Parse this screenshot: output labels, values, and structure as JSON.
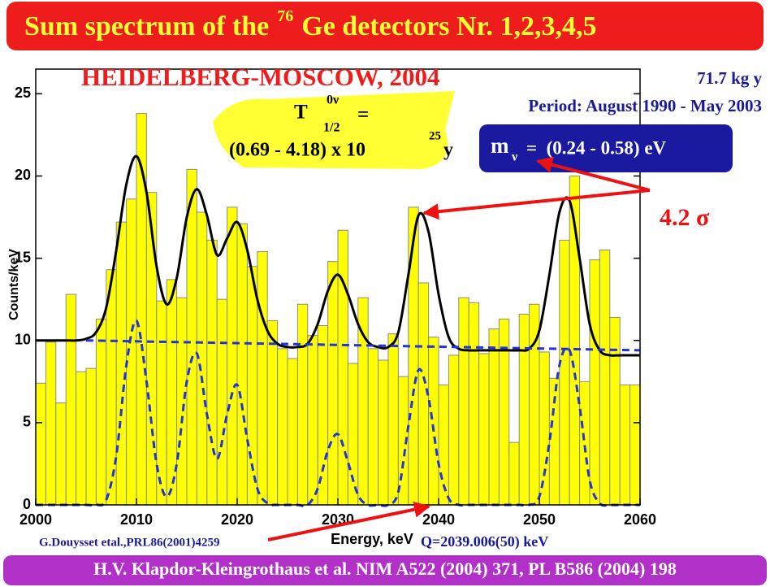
{
  "chart_data": {
    "type": "histogram",
    "title": {
      "main": "Sum spectrum of the",
      "superscript": "76",
      "rest": "Ge detectors Nr. 1,2,3,4,5"
    },
    "subtitle": "HEIDELBERG-MOSCOW, 2004",
    "exposure": "71.7 kg y",
    "period": "Period: August 1990 - May 2003",
    "half_life": {
      "symbol": "T",
      "superscript": "0ν",
      "subscript": "1/2",
      "equals": "=",
      "range": "(0.69 - 4.18) x 10",
      "exponent": "25",
      "unit": "y"
    },
    "mass": {
      "symbol": "m",
      "subscript": "ν",
      "range": "=  (0.24 - 0.58) eV"
    },
    "significance": "4.2 σ",
    "xlabel": "Energy, keV",
    "ylabel": "Counts/keV",
    "reference_note": "G.Douysset etal.,PRL86(2001)4259",
    "q_value": "Q=2039.006(50) keV",
    "footer": "H.V. Klapdor-Kleingrothaus et al. NIM A522 (2004) 371, PL B586 (2004) 198",
    "bins": [
      2000,
      2001,
      2002,
      2003,
      2004,
      2005,
      2006,
      2007,
      2008,
      2009,
      2010,
      2011,
      2012,
      2013,
      2014,
      2015,
      2016,
      2017,
      2018,
      2019,
      2020,
      2021,
      2022,
      2023,
      2024,
      2025,
      2026,
      2027,
      2028,
      2029,
      2030,
      2031,
      2032,
      2033,
      2034,
      2035,
      2036,
      2037,
      2038,
      2039,
      2040,
      2041,
      2042,
      2043,
      2044,
      2045,
      2046,
      2047,
      2048,
      2049,
      2050,
      2051,
      2052,
      2053,
      2054,
      2055,
      2056,
      2057,
      2058,
      2059,
      2060
    ],
    "counts": [
      7.4,
      9.9,
      6.2,
      12.8,
      8.1,
      8.3,
      11.3,
      14.3,
      17.2,
      18.6,
      23.8,
      19.0,
      12.4,
      13.7,
      12.6,
      20.4,
      17.8,
      16.1,
      12.5,
      18.1,
      17.1,
      14.5,
      15.4,
      11.2,
      9.5,
      8.9,
      12.2,
      10.3,
      10.9,
      14.8,
      16.7,
      8.6,
      12.6,
      9.5,
      8.8,
      10.4,
      7.8,
      18.1,
      13.5,
      10.2,
      7.3,
      9.1,
      12.6,
      12.3,
      9.2,
      10.7,
      11.3,
      3.8,
      11.6,
      12.2,
      9.3,
      7.7,
      16.1,
      20.0,
      7.5,
      14.9,
      15.5,
      11.4,
      7.3,
      7.3
    ],
    "color": "#ffff00",
    "edge_color": "#8a8a8a",
    "lines": [
      {
        "color": "#000000",
        "dashed": false,
        "x": [
          2000,
          2001,
          2002,
          2003,
          2004,
          2005,
          2006,
          2007,
          2008,
          2009,
          2010,
          2011,
          2012,
          2013,
          2014,
          2015,
          2016,
          2017,
          2018,
          2019,
          2020,
          2021,
          2022,
          2023,
          2024,
          2025,
          2026,
          2027,
          2028,
          2029,
          2030,
          2031,
          2032,
          2033,
          2034,
          2035,
          2036,
          2037,
          2038,
          2039,
          2040,
          2041,
          2042,
          2043,
          2044,
          2045,
          2046,
          2047,
          2048,
          2049,
          2050,
          2051,
          2052,
          2053,
          2054,
          2055,
          2056,
          2057,
          2058,
          2059,
          2060
        ],
        "values": [
          10,
          10,
          10,
          10,
          10,
          10.1,
          10.5,
          12,
          15.5,
          19.5,
          21.2,
          19,
          14.5,
          12.2,
          13.8,
          17.5,
          19.2,
          17.6,
          15.2,
          16.2,
          17.2,
          15.5,
          12.5,
          10.6,
          9.8,
          9.6,
          9.6,
          9.8,
          11,
          13,
          14,
          12.8,
          11,
          9.9,
          9.6,
          9.6,
          10.5,
          14,
          17.6,
          16.6,
          12.8,
          10.2,
          9.5,
          9.4,
          9.4,
          9.4,
          9.4,
          9.4,
          9.4,
          9.5,
          10.6,
          14,
          17.8,
          18.5,
          15,
          11,
          9.4,
          9.1,
          9.1,
          9.1,
          9.1
        ]
      },
      {
        "color": "#2233dd",
        "dashed": true,
        "x": [
          2005,
          2060
        ],
        "values": [
          10,
          9.4
        ]
      },
      {
        "color": "#2233dd",
        "dashed": true,
        "x": [
          2000,
          2001,
          2002,
          2003,
          2004,
          2005,
          2006,
          2007,
          2008,
          2009,
          2010,
          2011,
          2012,
          2013,
          2014,
          2015,
          2016,
          2017,
          2018,
          2019,
          2020,
          2021,
          2022,
          2023,
          2024,
          2025,
          2026,
          2027,
          2028,
          2029,
          2030,
          2031,
          2032,
          2033,
          2034,
          2035,
          2036,
          2037,
          2038,
          2039,
          2040,
          2041,
          2042,
          2043,
          2044,
          2045,
          2046,
          2047,
          2048,
          2049,
          2050,
          2051,
          2052,
          2053,
          2054,
          2055,
          2056,
          2057,
          2058,
          2059,
          2060
        ],
        "values": [
          0,
          0,
          0,
          0,
          0,
          0,
          0,
          0.3,
          3,
          8.5,
          11.2,
          7.5,
          2.5,
          0.5,
          2.5,
          7.5,
          9.2,
          5.5,
          2.8,
          5.5,
          7.3,
          4,
          1,
          0.1,
          0,
          0,
          0,
          0,
          1,
          3.3,
          4.3,
          2.6,
          0.6,
          0,
          0,
          0,
          0.8,
          4.8,
          8.2,
          6.5,
          2.5,
          0.4,
          0,
          0,
          0,
          0,
          0,
          0,
          0,
          0,
          0.5,
          3.8,
          8.5,
          9.4,
          6,
          1.5,
          0.1,
          0,
          0,
          0,
          0
        ]
      }
    ],
    "xlim": [
      2000,
      2060
    ],
    "ylim": [
      0,
      26.5
    ],
    "xticks": [
      2000,
      2010,
      2020,
      2030,
      2040,
      2050,
      2060
    ],
    "yticks": [
      0,
      5,
      10,
      15,
      20,
      25
    ]
  }
}
